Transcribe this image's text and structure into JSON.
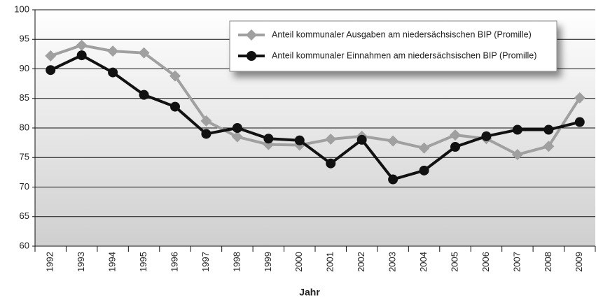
{
  "chart_data": {
    "type": "line",
    "x_label": "Jahr",
    "categories": [
      "1992",
      "1993",
      "1994",
      "1995",
      "1996",
      "1997",
      "1998",
      "1999",
      "2000",
      "2001",
      "2002",
      "2003",
      "2004",
      "2005",
      "2006",
      "2007",
      "2008",
      "2009"
    ],
    "series": [
      {
        "name": "Anteil kommunaler Ausgaben am niedersächsischen BIP (Promille)",
        "color": "#a0a0a0",
        "marker": "diamond",
        "values": [
          92.2,
          94.0,
          93.0,
          92.7,
          88.8,
          81.2,
          78.5,
          77.2,
          77.1,
          78.1,
          78.6,
          77.8,
          76.6,
          78.8,
          78.2,
          75.5,
          76.9,
          85.1
        ]
      },
      {
        "name": "Anteil kommunaler Einnahmen am niedersächsischen BIP (Promille)",
        "color": "#111111",
        "marker": "circle",
        "values": [
          89.8,
          92.3,
          89.4,
          85.6,
          83.6,
          79.0,
          80.0,
          78.2,
          77.9,
          74.0,
          78.0,
          71.3,
          72.8,
          76.8,
          78.6,
          79.7,
          79.7,
          81.0
        ]
      }
    ],
    "ylim": [
      60,
      100
    ],
    "yticks": [
      60,
      65,
      70,
      75,
      80,
      85,
      90,
      95,
      100
    ],
    "grid": true,
    "legend_position": "top-right"
  }
}
